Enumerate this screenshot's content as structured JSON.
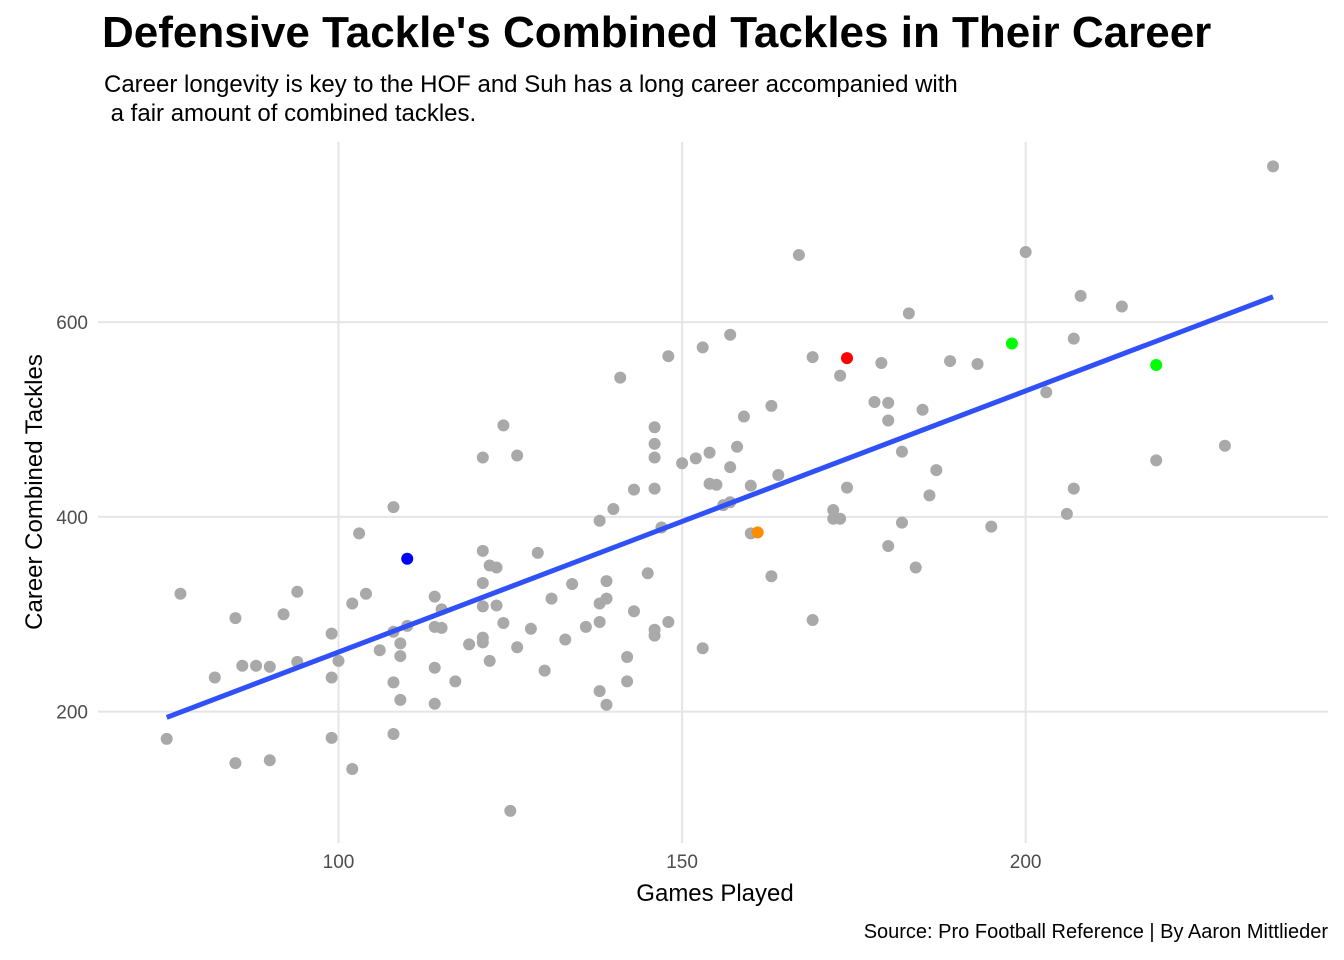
{
  "title": "Defensive Tackle's Combined Tackles in Their Career",
  "subtitle": "Career longevity is key to the HOF and Suh has a long career accompanied with\n a fair amount of combined tackles.",
  "caption": "Source: Pro Football Reference | By Aaron Mittlieder",
  "colors": {
    "point": "#a9a9a9",
    "trend": "#3050f8",
    "grid": "#e5e5e5",
    "highlight_red": "#ff0000",
    "highlight_blue": "#0000ff",
    "highlight_orange": "#ff8c00",
    "highlight_green": "#00ff00"
  },
  "chart_data": {
    "type": "scatter",
    "xlabel": "Games Played",
    "ylabel": "Career Combined Tackles",
    "xlim": [
      65,
      244
    ],
    "ylim": [
      65,
      785
    ],
    "xticks": [
      100,
      150,
      200
    ],
    "yticks": [
      200,
      400,
      600
    ],
    "grid": true,
    "trend_line": {
      "x": [
        75,
        236
      ],
      "y": [
        194,
        626
      ]
    },
    "highlighted_points": [
      {
        "x": 174,
        "y": 563,
        "color": "#ff0000"
      },
      {
        "x": 110,
        "y": 357,
        "color": "#0000ff"
      },
      {
        "x": 161,
        "y": 384,
        "color": "#ff8c00"
      },
      {
        "x": 198,
        "y": 578,
        "color": "#00ff00"
      },
      {
        "x": 219,
        "y": 556,
        "color": "#00ff00"
      }
    ],
    "points": [
      [
        75,
        172
      ],
      [
        77,
        321
      ],
      [
        82,
        235
      ],
      [
        85,
        296
      ],
      [
        85,
        147
      ],
      [
        86,
        247
      ],
      [
        88,
        247
      ],
      [
        90,
        246
      ],
      [
        90,
        150
      ],
      [
        92,
        300
      ],
      [
        94,
        323
      ],
      [
        94,
        251
      ],
      [
        99,
        280
      ],
      [
        99,
        235
      ],
      [
        99,
        173
      ],
      [
        100,
        252
      ],
      [
        102,
        311
      ],
      [
        102,
        141
      ],
      [
        103,
        383
      ],
      [
        104,
        321
      ],
      [
        106,
        263
      ],
      [
        108,
        410
      ],
      [
        108,
        282
      ],
      [
        108,
        230
      ],
      [
        108,
        177
      ],
      [
        109,
        270
      ],
      [
        109,
        257
      ],
      [
        109,
        212
      ],
      [
        110,
        288
      ],
      [
        114,
        318
      ],
      [
        114,
        287
      ],
      [
        114,
        245
      ],
      [
        114,
        208
      ],
      [
        115,
        305
      ],
      [
        115,
        286
      ],
      [
        117,
        231
      ],
      [
        119,
        269
      ],
      [
        121,
        461
      ],
      [
        121,
        365
      ],
      [
        121,
        332
      ],
      [
        121,
        308
      ],
      [
        121,
        276
      ],
      [
        121,
        271
      ],
      [
        122,
        350
      ],
      [
        122,
        252
      ],
      [
        123,
        348
      ],
      [
        123,
        309
      ],
      [
        124,
        494
      ],
      [
        124,
        291
      ],
      [
        125,
        98
      ],
      [
        126,
        463
      ],
      [
        126,
        266
      ],
      [
        128,
        285
      ],
      [
        129,
        363
      ],
      [
        130,
        242
      ],
      [
        131,
        316
      ],
      [
        133,
        274
      ],
      [
        134,
        331
      ],
      [
        136,
        287
      ],
      [
        138,
        396
      ],
      [
        138,
        311
      ],
      [
        138,
        292
      ],
      [
        138,
        221
      ],
      [
        139,
        334
      ],
      [
        139,
        316
      ],
      [
        139,
        207
      ],
      [
        140,
        408
      ],
      [
        141,
        543
      ],
      [
        142,
        256
      ],
      [
        142,
        231
      ],
      [
        143,
        428
      ],
      [
        143,
        303
      ],
      [
        145,
        342
      ],
      [
        146,
        492
      ],
      [
        146,
        475
      ],
      [
        146,
        461
      ],
      [
        146,
        429
      ],
      [
        146,
        284
      ],
      [
        146,
        278
      ],
      [
        147,
        389
      ],
      [
        148,
        565
      ],
      [
        148,
        292
      ],
      [
        150,
        455
      ],
      [
        152,
        460
      ],
      [
        153,
        574
      ],
      [
        153,
        265
      ],
      [
        154,
        466
      ],
      [
        154,
        434
      ],
      [
        155,
        433
      ],
      [
        156,
        412
      ],
      [
        157,
        587
      ],
      [
        157,
        451
      ],
      [
        157,
        415
      ],
      [
        158,
        472
      ],
      [
        159,
        503
      ],
      [
        160,
        432
      ],
      [
        160,
        383
      ],
      [
        163,
        514
      ],
      [
        163,
        339
      ],
      [
        164,
        443
      ],
      [
        167,
        669
      ],
      [
        169,
        564
      ],
      [
        169,
        294
      ],
      [
        172,
        407
      ],
      [
        172,
        398
      ],
      [
        173,
        545
      ],
      [
        173,
        398
      ],
      [
        174,
        430
      ],
      [
        178,
        518
      ],
      [
        179,
        558
      ],
      [
        180,
        517
      ],
      [
        180,
        499
      ],
      [
        180,
        370
      ],
      [
        182,
        467
      ],
      [
        182,
        394
      ],
      [
        183,
        609
      ],
      [
        184,
        348
      ],
      [
        185,
        510
      ],
      [
        186,
        422
      ],
      [
        187,
        448
      ],
      [
        189,
        560
      ],
      [
        193,
        557
      ],
      [
        195,
        390
      ],
      [
        200,
        672
      ],
      [
        203,
        528
      ],
      [
        206,
        403
      ],
      [
        207,
        583
      ],
      [
        207,
        429
      ],
      [
        208,
        627
      ],
      [
        214,
        616
      ],
      [
        219,
        458
      ],
      [
        229,
        473
      ],
      [
        236,
        760
      ]
    ]
  }
}
